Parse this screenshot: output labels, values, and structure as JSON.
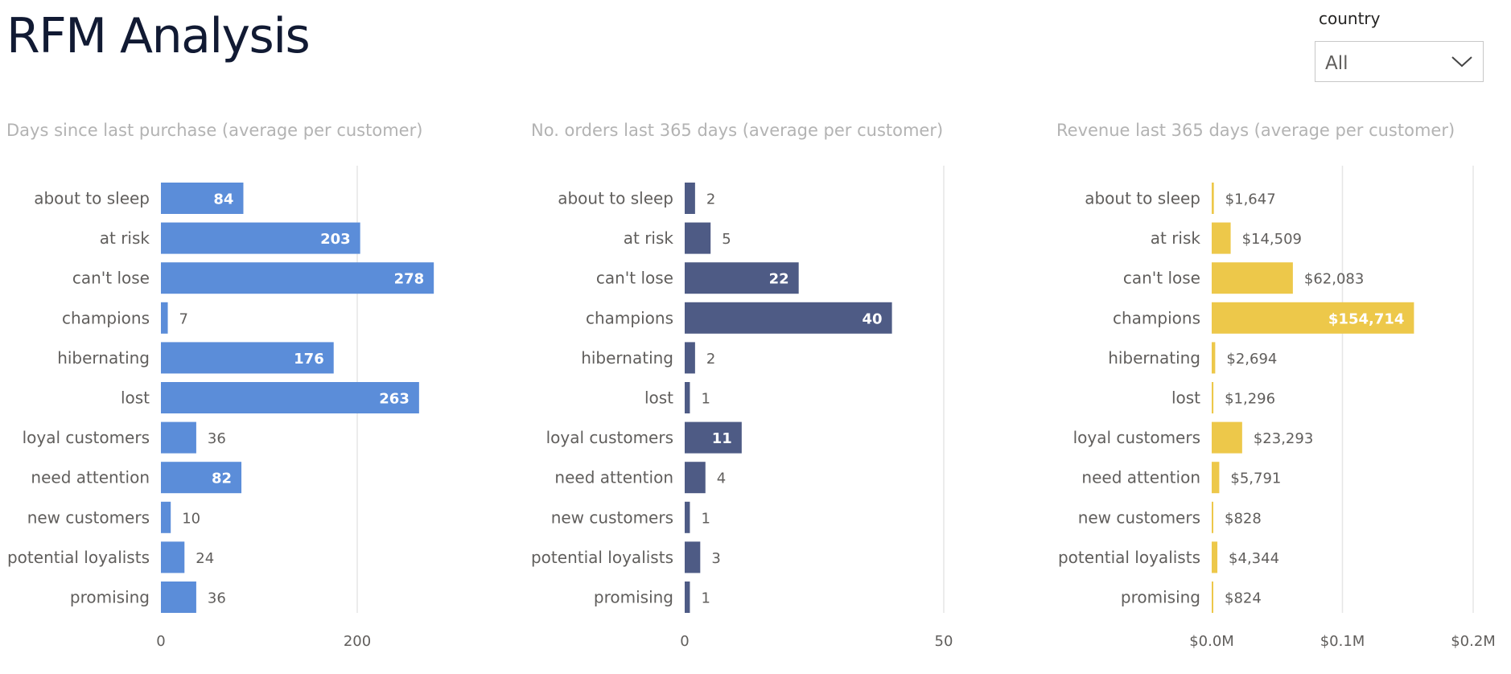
{
  "header": {
    "title": "RFM Analysis"
  },
  "slicer": {
    "label": "country",
    "value": "All"
  },
  "chart_data": [
    {
      "type": "bar",
      "orientation": "horizontal",
      "title": "Days since last purchase (average per customer)",
      "categories": [
        "about to sleep",
        "at risk",
        "can't lose",
        "champions",
        "hibernating",
        "lost",
        "loyal customers",
        "need attention",
        "new customers",
        "potential loyalists",
        "promising"
      ],
      "values": [
        84,
        203,
        278,
        7,
        176,
        263,
        36,
        82,
        10,
        24,
        36
      ],
      "value_labels": [
        "84",
        "203",
        "278",
        "7",
        "176",
        "263",
        "36",
        "82",
        "10",
        "24",
        "36"
      ],
      "xlim": [
        0,
        300
      ],
      "ticks": [
        0,
        200
      ],
      "tick_labels": [
        "0",
        "200"
      ],
      "grid": true,
      "color": "#5b8dd9"
    },
    {
      "type": "bar",
      "orientation": "horizontal",
      "title": "No. orders last 365 days (average per customer)",
      "categories": [
        "about to sleep",
        "at risk",
        "can't lose",
        "champions",
        "hibernating",
        "lost",
        "loyal customers",
        "need attention",
        "new customers",
        "potential loyalists",
        "promising"
      ],
      "values": [
        2,
        5,
        22,
        40,
        2,
        1,
        11,
        4,
        1,
        3,
        1
      ],
      "value_labels": [
        "2",
        "5",
        "22",
        "40",
        "2",
        "1",
        "11",
        "4",
        "1",
        "3",
        "1"
      ],
      "xlim": [
        0,
        50
      ],
      "ticks": [
        0,
        50
      ],
      "tick_labels": [
        "0",
        "50"
      ],
      "grid": true,
      "color": "#4e5b85"
    },
    {
      "type": "bar",
      "orientation": "horizontal",
      "title": "Revenue last 365 days (average per customer)",
      "categories": [
        "about to sleep",
        "at risk",
        "can't lose",
        "champions",
        "hibernating",
        "lost",
        "loyal customers",
        "need attention",
        "new customers",
        "potential loyalists",
        "promising"
      ],
      "values": [
        1647,
        14509,
        62083,
        154714,
        2694,
        1296,
        23293,
        5791,
        828,
        4344,
        824
      ],
      "value_labels": [
        "$1,647",
        "$14,509",
        "$62,083",
        "$154,714",
        "$2,694",
        "$1,296",
        "$23,293",
        "$5,791",
        "$828",
        "$4,344",
        "$824"
      ],
      "xlim": [
        0,
        200000
      ],
      "ticks": [
        0,
        100000,
        200000
      ],
      "tick_labels": [
        "$0.0M",
        "$0.1M",
        "$0.2M"
      ],
      "grid": true,
      "color": "#edc84a"
    }
  ]
}
